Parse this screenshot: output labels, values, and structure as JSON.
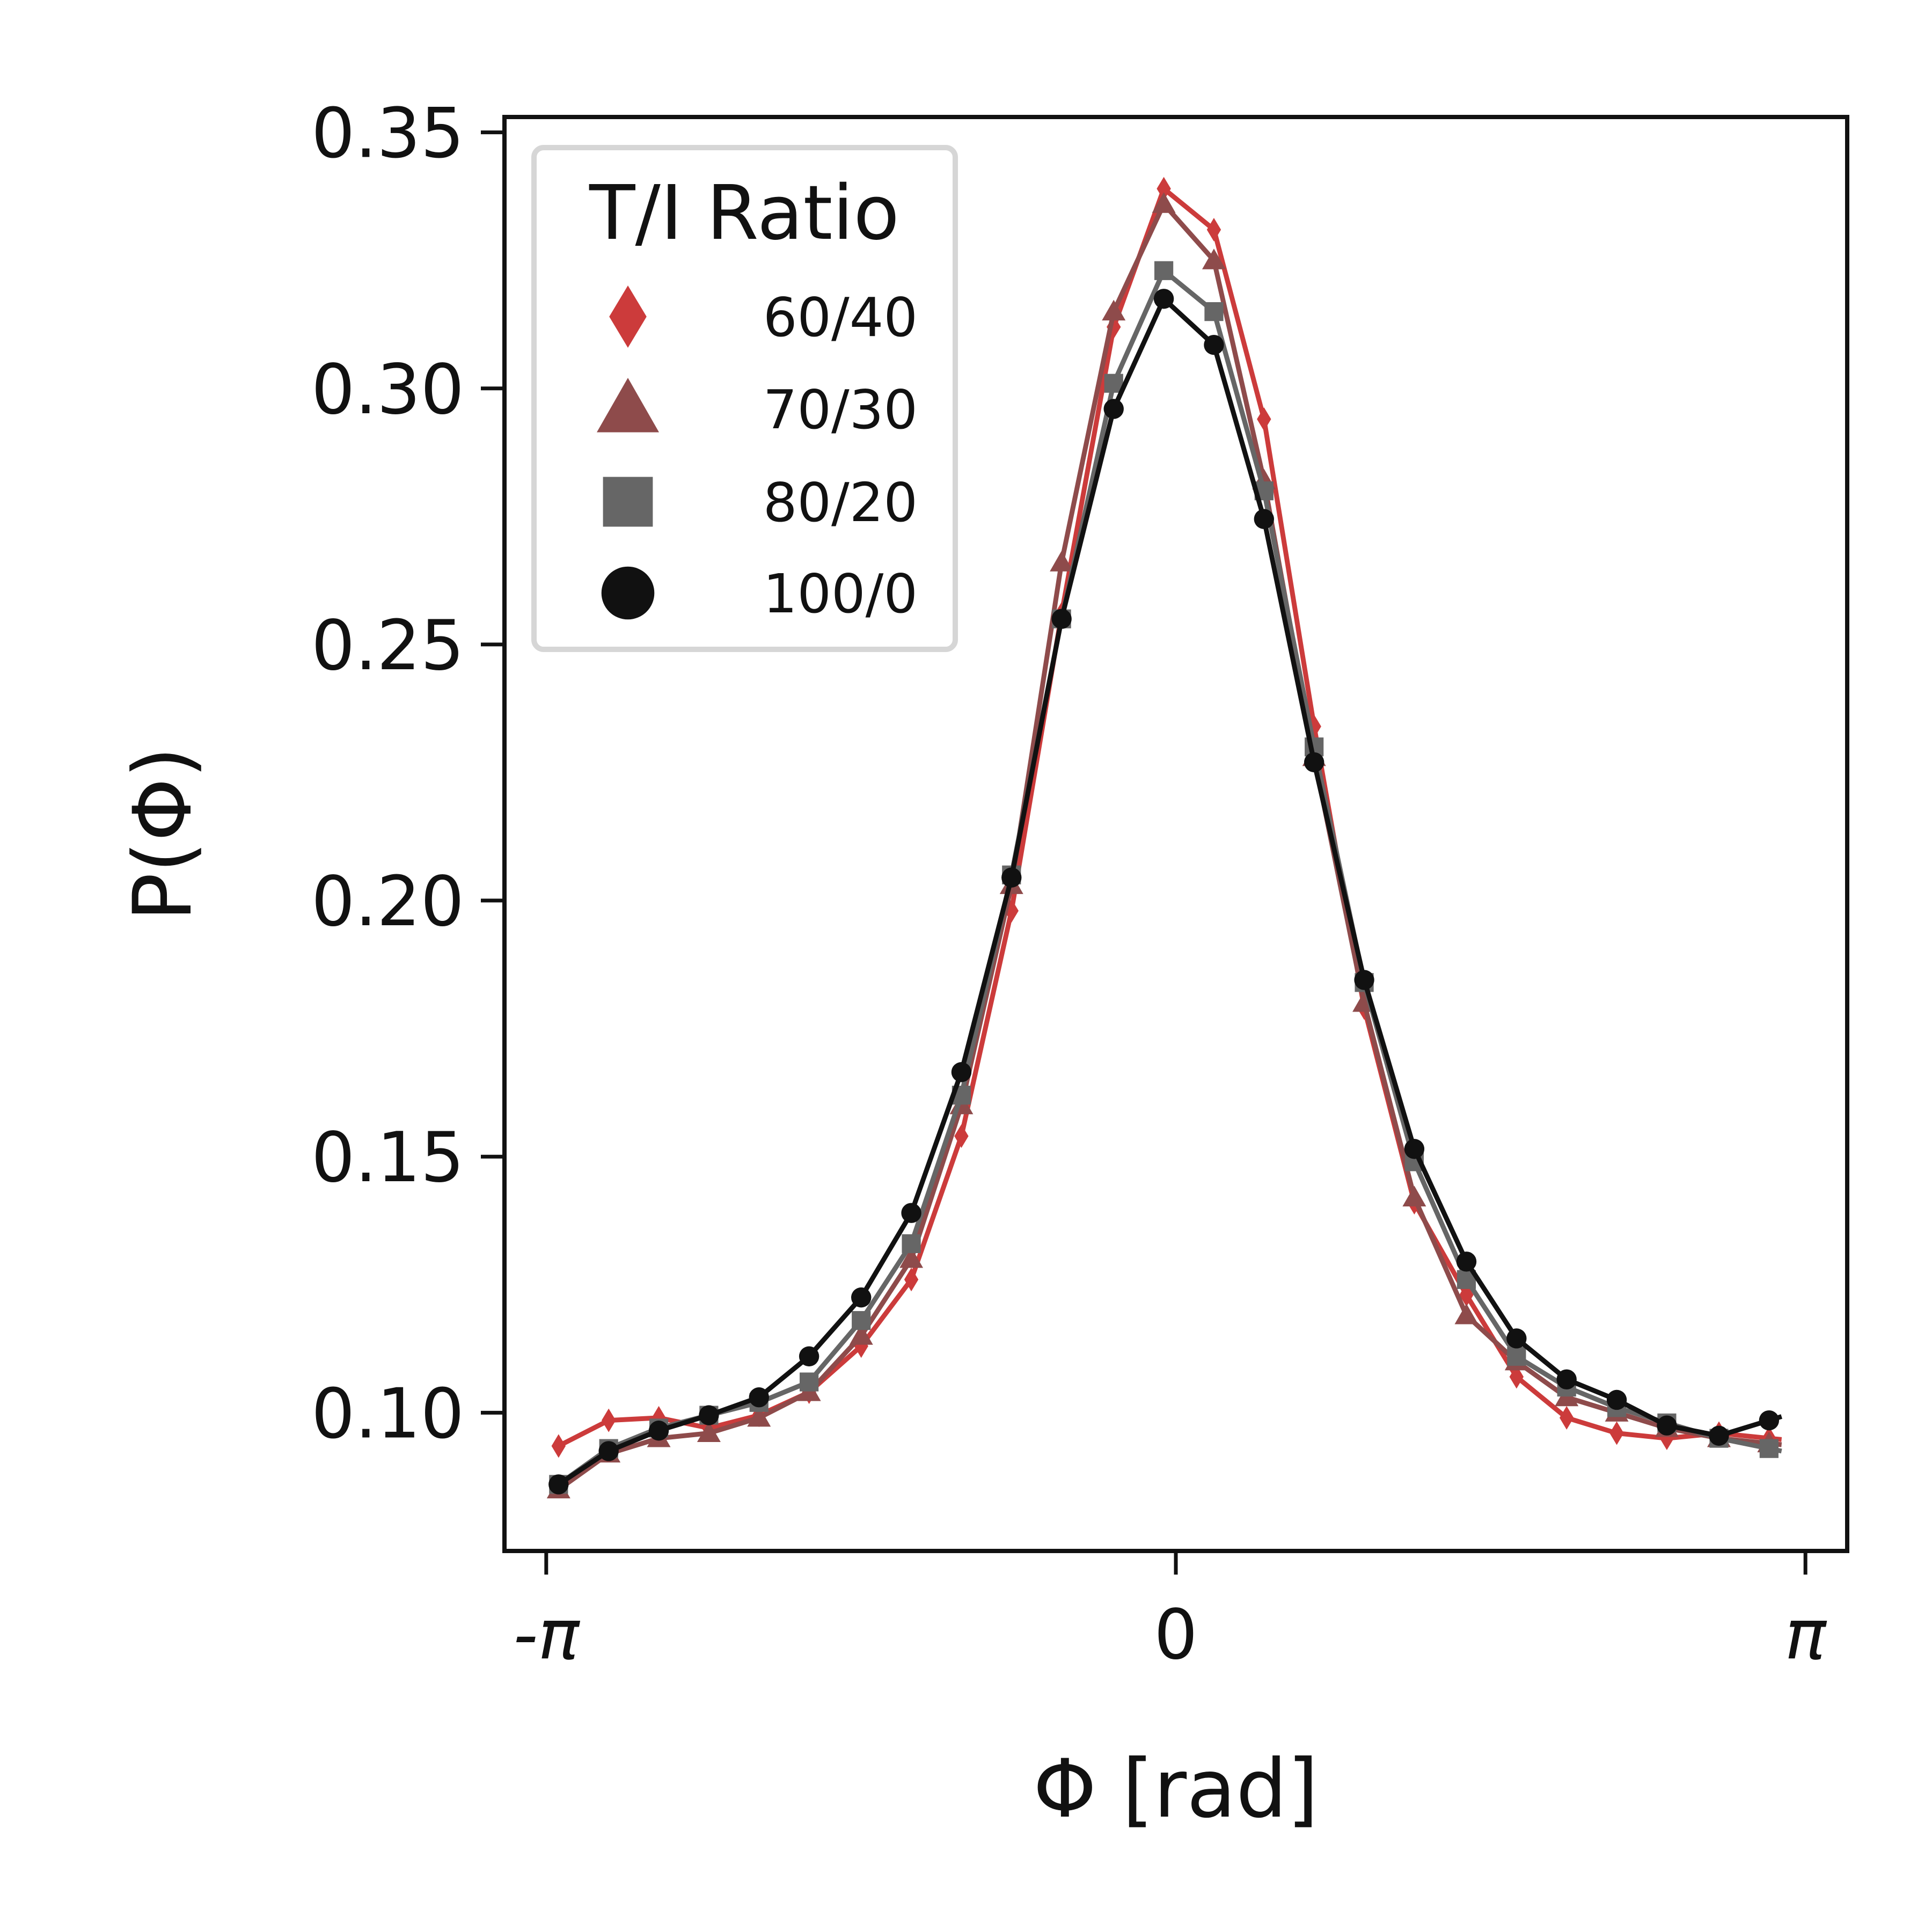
{
  "chart_data": {
    "type": "line",
    "xlabel": "Φ [rad]",
    "ylabel": "P(Φ)",
    "xlim": [
      -3.35,
      3.35
    ],
    "ylim": [
      0.073,
      0.353
    ],
    "x_ticks": [
      {
        "value": -3.14159,
        "label": "-π"
      },
      {
        "value": 0,
        "label": "0"
      },
      {
        "value": 3.14159,
        "label": "π"
      }
    ],
    "y_ticks": [
      {
        "value": 0.1,
        "label": "0.10"
      },
      {
        "value": 0.15,
        "label": "0.15"
      },
      {
        "value": 0.2,
        "label": "0.20"
      },
      {
        "value": 0.25,
        "label": "0.25"
      },
      {
        "value": 0.3,
        "label": "0.30"
      },
      {
        "value": 0.35,
        "label": "0.35"
      }
    ],
    "grid": false,
    "legend": {
      "title": "T/I Ratio",
      "position": "top-left"
    },
    "series": [
      {
        "name": "60/40",
        "marker": "diamond",
        "color": "#cc3b3b",
        "x": [
          -3.08,
          -2.83,
          -2.58,
          -2.33,
          -2.08,
          -1.83,
          -1.57,
          -1.32,
          -1.07,
          -0.82,
          -0.57,
          -0.31,
          -0.06,
          0.19,
          0.44,
          0.69,
          0.94,
          1.19,
          1.45,
          1.7,
          1.95,
          2.2,
          2.45,
          2.71,
          2.96
        ],
        "y": [
          0.0935,
          0.0985,
          0.099,
          0.097,
          0.0995,
          0.104,
          0.113,
          0.126,
          0.154,
          0.198,
          0.256,
          0.312,
          0.339,
          0.331,
          0.294,
          0.234,
          0.179,
          0.141,
          0.123,
          0.107,
          0.099,
          0.096,
          0.095,
          0.096,
          0.095
        ]
      },
      {
        "name": "70/30",
        "marker": "triangle",
        "color": "#8e4b4b",
        "x": [
          -3.08,
          -2.83,
          -2.58,
          -2.33,
          -2.08,
          -1.83,
          -1.57,
          -1.32,
          -1.07,
          -0.82,
          -0.57,
          -0.31,
          -0.06,
          0.19,
          0.44,
          0.69,
          0.94,
          1.19,
          1.45,
          1.7,
          1.95,
          2.2,
          2.45,
          2.71,
          2.96
        ],
        "y": [
          0.085,
          0.092,
          0.095,
          0.096,
          0.099,
          0.104,
          0.115,
          0.13,
          0.16,
          0.203,
          0.266,
          0.315,
          0.336,
          0.325,
          0.282,
          0.228,
          0.18,
          0.142,
          0.119,
          0.11,
          0.103,
          0.1,
          0.097,
          0.095,
          0.094
        ]
      },
      {
        "name": "80/20",
        "marker": "square",
        "color": "#666666",
        "x": [
          -3.08,
          -2.83,
          -2.58,
          -2.33,
          -2.08,
          -1.83,
          -1.57,
          -1.32,
          -1.07,
          -0.82,
          -0.57,
          -0.31,
          -0.06,
          0.19,
          0.44,
          0.69,
          0.94,
          1.19,
          1.45,
          1.7,
          1.95,
          2.2,
          2.45,
          2.71,
          2.96
        ],
        "y": [
          0.086,
          0.093,
          0.097,
          0.0995,
          0.102,
          0.106,
          0.118,
          0.133,
          0.162,
          0.205,
          0.255,
          0.301,
          0.323,
          0.315,
          0.28,
          0.23,
          0.184,
          0.149,
          0.126,
          0.111,
          0.105,
          0.101,
          0.098,
          0.095,
          0.093
        ]
      },
      {
        "name": "100/0",
        "marker": "circle",
        "color": "#111111",
        "x": [
          -3.08,
          -2.83,
          -2.58,
          -2.33,
          -2.08,
          -1.83,
          -1.57,
          -1.32,
          -1.07,
          -0.82,
          -0.57,
          -0.31,
          -0.06,
          0.19,
          0.44,
          0.69,
          0.94,
          1.19,
          1.45,
          1.7,
          1.95,
          2.2,
          2.45,
          2.71,
          2.96
        ],
        "y": [
          0.086,
          0.0925,
          0.0965,
          0.0995,
          0.103,
          0.111,
          0.1225,
          0.139,
          0.1665,
          0.2045,
          0.255,
          0.296,
          0.3175,
          0.3085,
          0.2745,
          0.227,
          0.1845,
          0.1515,
          0.1295,
          0.1145,
          0.1065,
          0.1025,
          0.0975,
          0.0955,
          0.0985
        ]
      }
    ]
  }
}
